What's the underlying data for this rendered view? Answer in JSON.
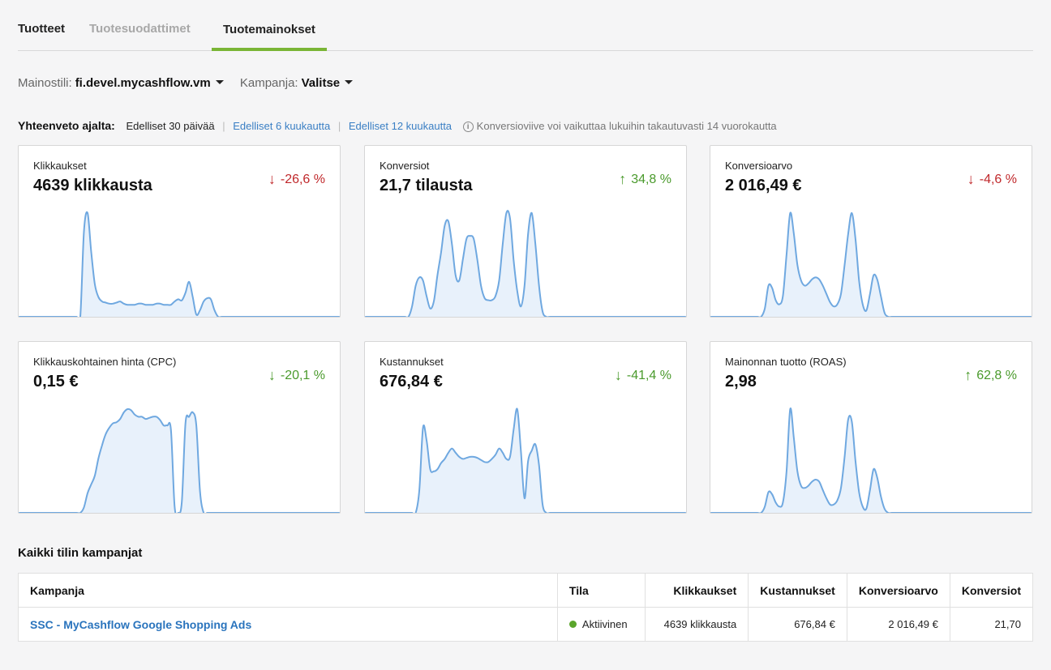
{
  "tabs": [
    {
      "label": "Tuotteet",
      "state": "normal"
    },
    {
      "label": "Tuotesuodattimet",
      "state": "disabled"
    },
    {
      "label": "Tuotemainokset",
      "state": "active"
    }
  ],
  "filters": {
    "account_label": "Mainostili:",
    "account_value": "fi.devel.mycashflow.vm",
    "campaign_label": "Kampanja:",
    "campaign_value": "Valitse"
  },
  "summary": {
    "label": "Yhteenveto ajalta:",
    "options": [
      "Edelliset 30 päivää",
      "Edelliset 6 kuukautta",
      "Edelliset 12 kuukautta"
    ],
    "active_index": 0,
    "info": "Konversioviive voi vaikuttaa lukuihin takautuvasti 14 vuorokautta"
  },
  "colors": {
    "accent": "#7ab536",
    "negative": "#c0282b",
    "positive": "#4a9a2c",
    "link": "#2a74bd",
    "spark_line": "#6fa8e0",
    "spark_fill": "#e8f1fb",
    "status_active": "#5aa52b"
  },
  "cards": [
    {
      "title": "Klikkaukset",
      "value": "4639 klikkausta",
      "change": "-26,6 %",
      "direction": "down",
      "sentiment": "negative",
      "series": [
        0,
        0,
        0,
        0,
        0,
        0,
        0,
        0,
        0,
        0,
        0,
        0,
        0,
        0,
        0,
        0,
        0,
        0,
        78,
        95,
        60,
        30,
        18,
        14,
        13,
        12,
        12,
        13,
        14,
        12,
        11,
        11,
        11,
        12,
        12,
        11,
        11,
        11,
        12,
        12,
        11,
        11,
        11,
        14,
        16,
        15,
        22,
        32,
        18,
        2,
        6,
        14,
        17,
        16,
        6,
        0,
        0,
        0,
        0,
        0,
        0,
        0,
        0,
        0,
        0,
        0,
        0,
        0,
        0,
        0,
        0,
        0,
        0,
        0,
        0,
        0,
        0,
        0,
        0,
        0,
        0,
        0,
        0,
        0,
        0,
        0,
        0,
        0,
        0,
        0
      ]
    },
    {
      "title": "Konversiot",
      "value": "21,7 tilausta",
      "change": "34,8 %",
      "direction": "up",
      "sentiment": "positive",
      "series": [
        0,
        0,
        0,
        0,
        0,
        0,
        0,
        0,
        0,
        0,
        0,
        0,
        0,
        10,
        30,
        38,
        35,
        20,
        8,
        15,
        40,
        62,
        88,
        92,
        70,
        40,
        35,
        55,
        75,
        78,
        75,
        55,
        30,
        18,
        16,
        16,
        20,
        35,
        70,
        100,
        95,
        55,
        25,
        10,
        30,
        80,
        100,
        70,
        30,
        5,
        0,
        0,
        0,
        0,
        0,
        0,
        0,
        0,
        0,
        0,
        0,
        0,
        0,
        0,
        0,
        0,
        0,
        0,
        0,
        0,
        0,
        0,
        0,
        0,
        0,
        0,
        0,
        0,
        0,
        0,
        0,
        0,
        0,
        0,
        0,
        0,
        0,
        0,
        0,
        0
      ]
    },
    {
      "title": "Konversioarvo",
      "value": "2 016,49 €",
      "change": "-4,6 %",
      "direction": "down",
      "sentiment": "negative",
      "series": [
        0,
        0,
        0,
        0,
        0,
        0,
        0,
        0,
        0,
        0,
        0,
        0,
        0,
        0,
        0,
        8,
        30,
        28,
        16,
        12,
        20,
        60,
        100,
        80,
        50,
        35,
        30,
        32,
        36,
        38,
        36,
        30,
        22,
        14,
        10,
        12,
        22,
        50,
        80,
        100,
        75,
        35,
        12,
        6,
        22,
        40,
        36,
        20,
        4,
        0,
        0,
        0,
        0,
        0,
        0,
        0,
        0,
        0,
        0,
        0,
        0,
        0,
        0,
        0,
        0,
        0,
        0,
        0,
        0,
        0,
        0,
        0,
        0,
        0,
        0,
        0,
        0,
        0,
        0,
        0,
        0,
        0,
        0,
        0,
        0,
        0,
        0,
        0,
        0,
        0
      ]
    },
    {
      "title": "Klikkauskohtainen hinta (CPC)",
      "value": "0,15 €",
      "change": "-20,1 %",
      "direction": "down",
      "sentiment": "positive",
      "series": [
        0,
        0,
        0,
        0,
        0,
        0,
        0,
        0,
        0,
        0,
        0,
        0,
        0,
        0,
        0,
        0,
        0,
        0,
        5,
        18,
        26,
        34,
        50,
        62,
        72,
        78,
        82,
        83,
        86,
        92,
        95,
        94,
        90,
        88,
        88,
        86,
        87,
        88,
        88,
        85,
        80,
        80,
        76,
        6,
        0,
        10,
        82,
        88,
        92,
        80,
        20,
        0,
        0,
        0,
        0,
        0,
        0,
        0,
        0,
        0,
        0,
        0,
        0,
        0,
        0,
        0,
        0,
        0,
        0,
        0,
        0,
        0,
        0,
        0,
        0,
        0,
        0,
        0,
        0,
        0,
        0,
        0,
        0,
        0,
        0,
        0,
        0,
        0,
        0,
        0
      ]
    },
    {
      "title": "Kustannukset",
      "value": "676,84 €",
      "change": "-41,4 %",
      "direction": "down",
      "sentiment": "positive",
      "series": [
        0,
        0,
        0,
        0,
        0,
        0,
        0,
        0,
        0,
        0,
        0,
        0,
        0,
        0,
        0,
        22,
        82,
        70,
        42,
        40,
        42,
        48,
        52,
        58,
        62,
        58,
        54,
        52,
        53,
        54,
        54,
        53,
        51,
        49,
        49,
        52,
        56,
        62,
        58,
        52,
        54,
        80,
        100,
        60,
        14,
        50,
        60,
        66,
        46,
        8,
        0,
        0,
        0,
        0,
        0,
        0,
        0,
        0,
        0,
        0,
        0,
        0,
        0,
        0,
        0,
        0,
        0,
        0,
        0,
        0,
        0,
        0,
        0,
        0,
        0,
        0,
        0,
        0,
        0,
        0,
        0,
        0,
        0,
        0,
        0,
        0,
        0,
        0,
        0,
        0
      ]
    },
    {
      "title": "Mainonnan tuotto (ROAS)",
      "value": "2,98",
      "change": "62,8 %",
      "direction": "up",
      "sentiment": "positive",
      "series": [
        0,
        0,
        0,
        0,
        0,
        0,
        0,
        0,
        0,
        0,
        0,
        0,
        0,
        0,
        0,
        6,
        20,
        18,
        10,
        6,
        10,
        40,
        100,
        72,
        40,
        26,
        24,
        26,
        30,
        32,
        30,
        22,
        14,
        8,
        8,
        12,
        24,
        54,
        90,
        88,
        50,
        20,
        6,
        4,
        22,
        42,
        34,
        16,
        4,
        0,
        0,
        0,
        0,
        0,
        0,
        0,
        0,
        0,
        0,
        0,
        0,
        0,
        0,
        0,
        0,
        0,
        0,
        0,
        0,
        0,
        0,
        0,
        0,
        0,
        0,
        0,
        0,
        0,
        0,
        0,
        0,
        0,
        0,
        0,
        0,
        0,
        0,
        0,
        0,
        0
      ]
    }
  ],
  "campaigns": {
    "section_title": "Kaikki tilin kampanjat",
    "headers": {
      "campaign": "Kampanja",
      "status": "Tila",
      "clicks": "Klikkaukset",
      "costs": "Kustannukset",
      "conv_value": "Konversioarvo",
      "conversions": "Konversiot"
    },
    "rows": [
      {
        "campaign": "SSC - MyCashflow Google Shopping Ads",
        "status": "Aktiivinen",
        "clicks": "4639 klikkausta",
        "costs": "676,84 €",
        "conv_value": "2 016,49 €",
        "conversions": "21,70"
      }
    ]
  }
}
